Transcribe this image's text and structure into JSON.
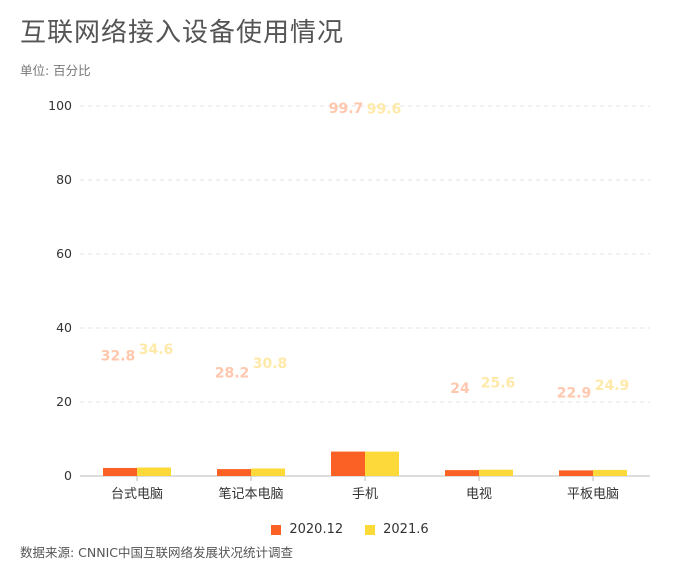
{
  "title": "互联网络接入设备使用情况",
  "subtitle": "单位: 百分比",
  "source": "数据来源: CNNIC中国互联网络发展状况统计调查",
  "colors": {
    "series1": "#fb6024",
    "series2": "#fed93a",
    "label1": "#ffc8ae",
    "label2": "#ffe9a8"
  },
  "chart_data": {
    "type": "bar",
    "title": "互联网络接入设备使用情况",
    "subtitle": "单位: 百分比",
    "categories": [
      "台式电脑",
      "笔记本电脑",
      "手机",
      "电视",
      "平板电脑"
    ],
    "series": [
      {
        "name": "2020.12",
        "values": [
          32.8,
          28.2,
          99.7,
          24,
          22.9
        ]
      },
      {
        "name": "2021.6",
        "values": [
          34.6,
          30.8,
          99.6,
          25.6,
          24.9
        ]
      }
    ],
    "yticks": [
      0,
      20,
      40,
      60,
      80,
      100
    ],
    "ylim": [
      0,
      100
    ],
    "grid": true,
    "legend": "bottom-center"
  }
}
